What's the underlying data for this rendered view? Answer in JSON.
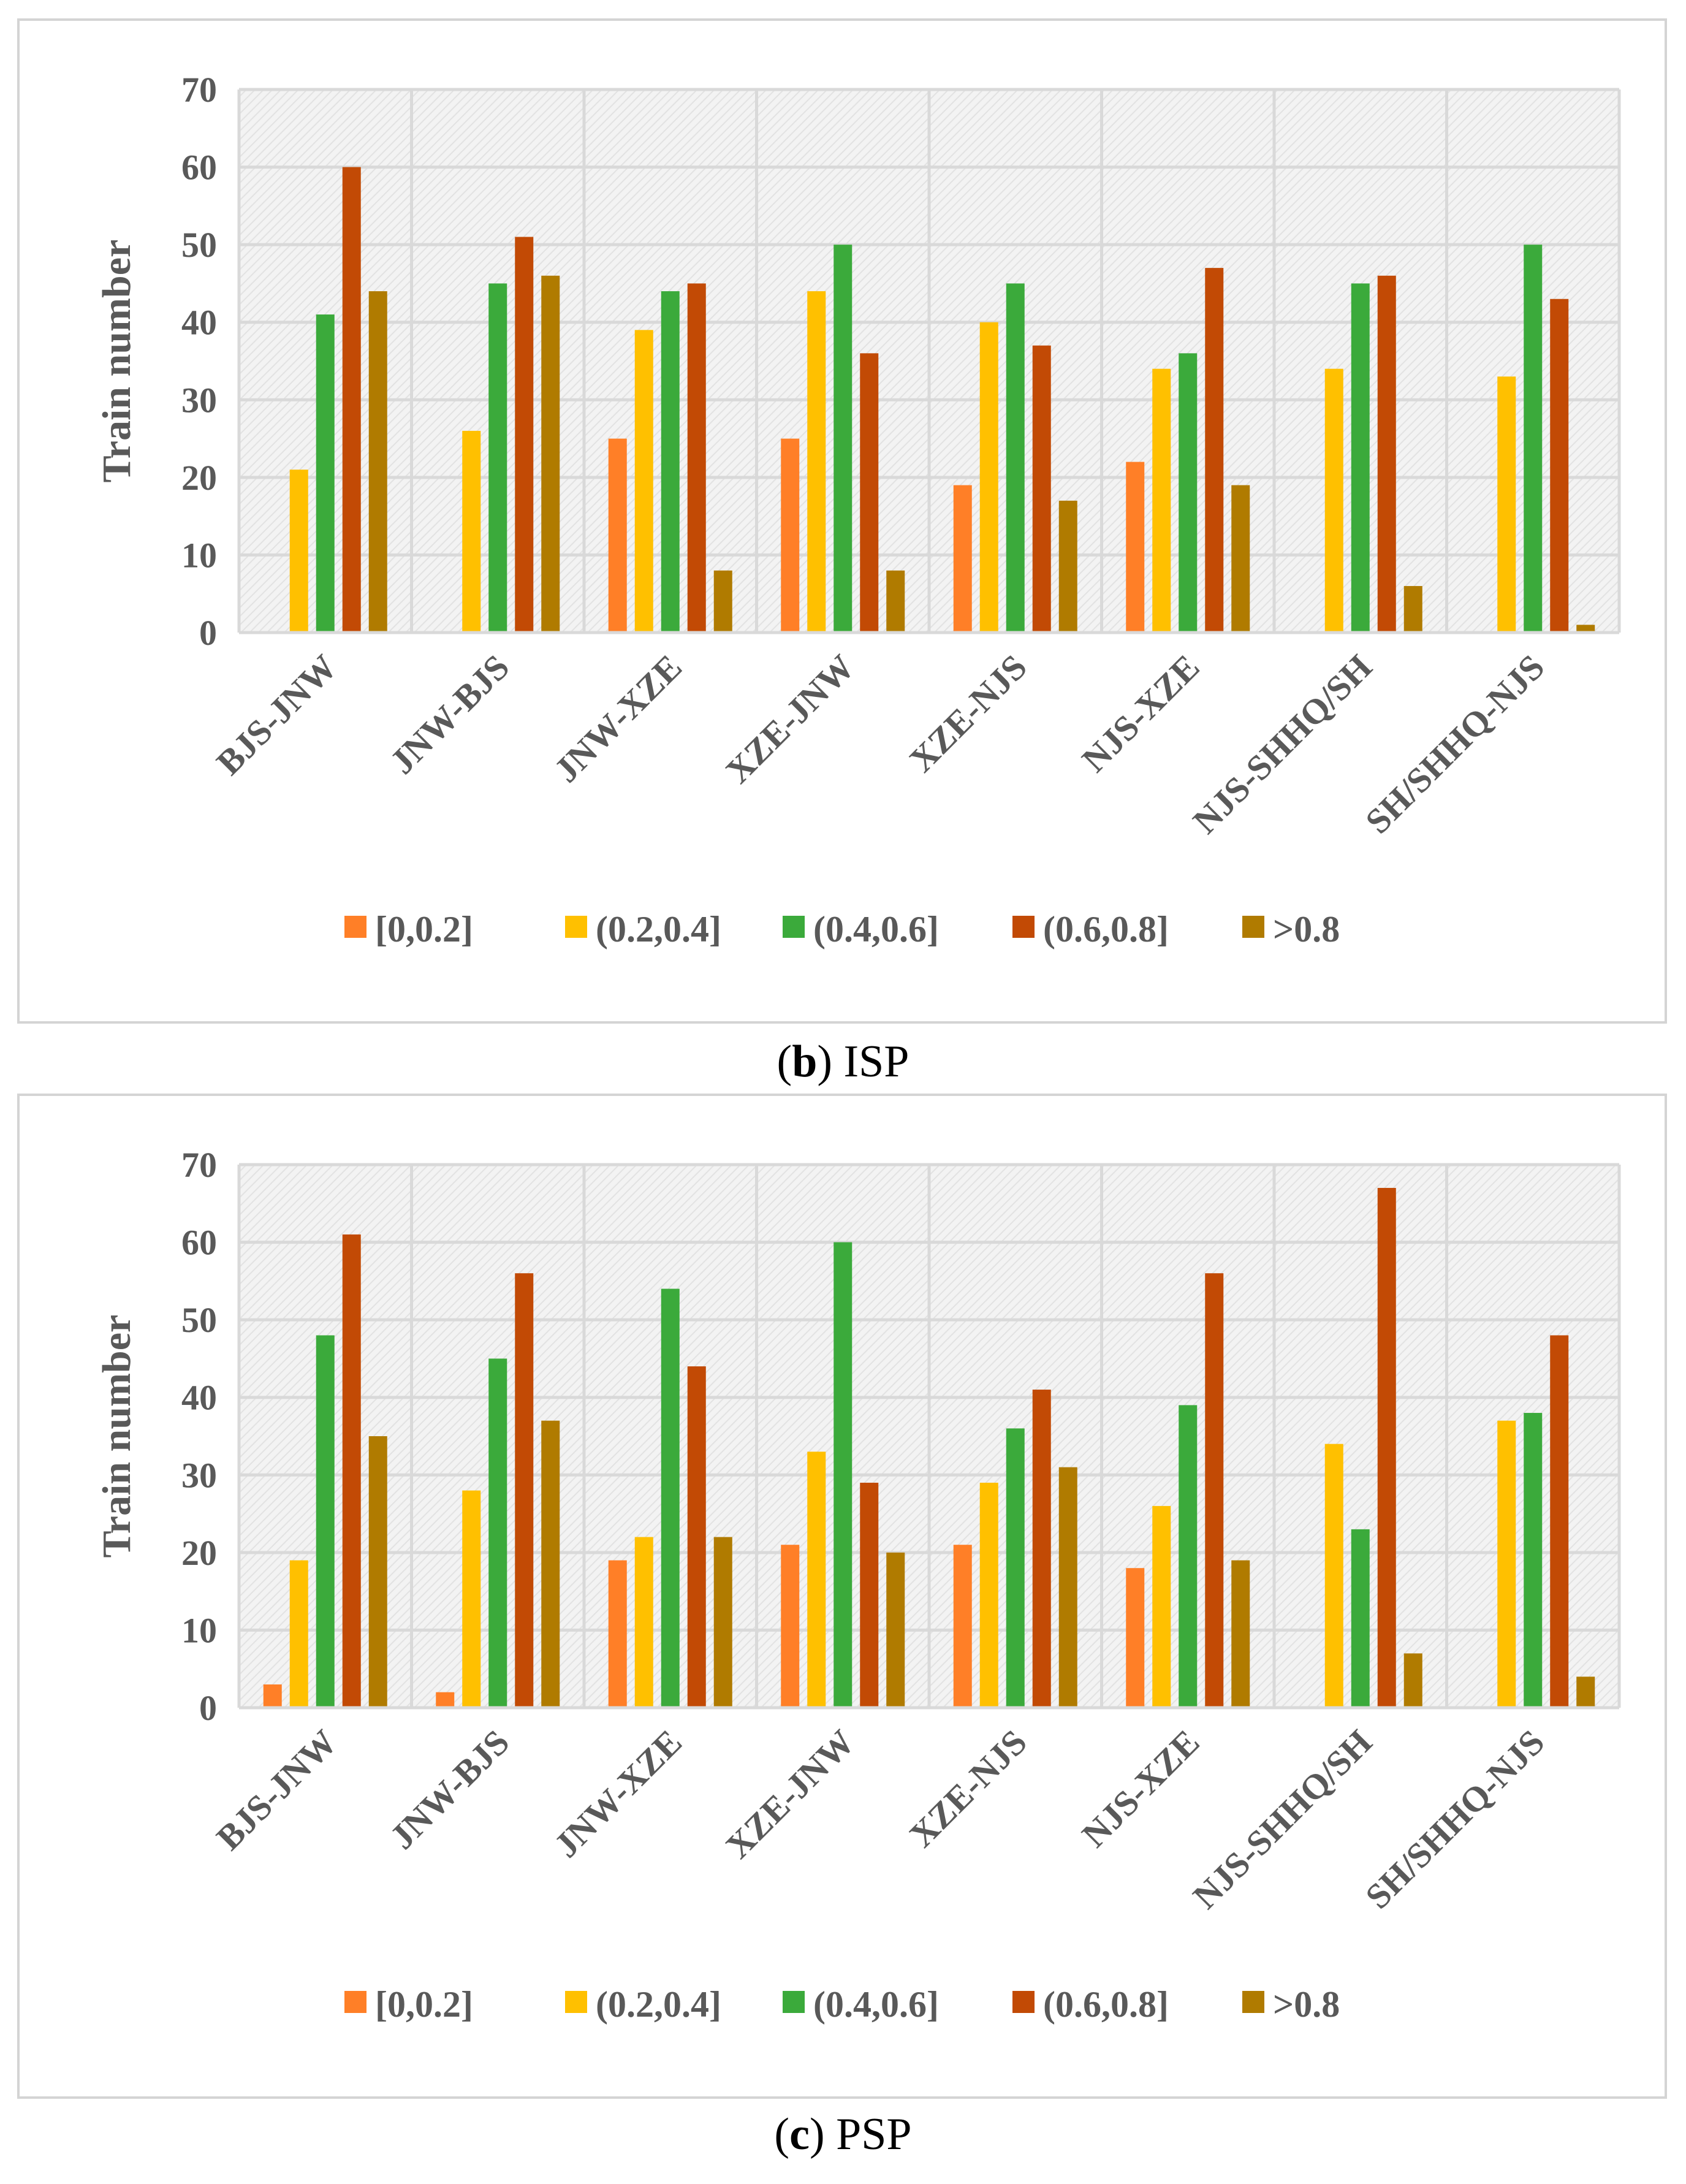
{
  "colors": {
    "s0": "#FF7F27",
    "s1": "#FFC000",
    "s2": "#3BAA3B",
    "s3": "#C24A05",
    "s4": "#B07B00",
    "grid": "#d9d9d9",
    "plot_bg": "#f3f3f3",
    "axis_text": "#595959"
  },
  "chart_data": [
    {
      "type": "bar",
      "panel_id": "b",
      "caption_letter": "b",
      "caption_text": "ISP",
      "ylabel": "Train number",
      "ylim": [
        0,
        70
      ],
      "yticks": [
        "0",
        "10",
        "20",
        "30",
        "40",
        "50",
        "60",
        "70"
      ],
      "grid": true,
      "legend_position": "bottom",
      "categories": [
        "BJS-JNW",
        "JNW-BJS",
        "JNW-XZE",
        "XZE-JNW",
        "XZE-NJS",
        "NJS-XZE",
        "NJS-SHHQ/SH",
        "SH/SHHQ-NJS"
      ],
      "series": [
        {
          "name": "[0,0.2]",
          "values": [
            0,
            0,
            25,
            25,
            19,
            22,
            0,
            0
          ]
        },
        {
          "name": "(0.2,0.4]",
          "values": [
            21,
            26,
            39,
            44,
            40,
            34,
            34,
            33
          ]
        },
        {
          "name": "(0.4,0.6]",
          "values": [
            41,
            45,
            44,
            50,
            45,
            36,
            45,
            50
          ]
        },
        {
          "name": "(0.6,0.8]",
          "values": [
            60,
            51,
            45,
            36,
            37,
            47,
            46,
            43
          ]
        },
        {
          "name": ">0.8",
          "values": [
            44,
            46,
            8,
            8,
            17,
            19,
            6,
            1
          ]
        }
      ]
    },
    {
      "type": "bar",
      "panel_id": "c",
      "caption_letter": "c",
      "caption_text": "PSP",
      "ylabel": "Train number",
      "ylim": [
        0,
        70
      ],
      "yticks": [
        "0",
        "10",
        "20",
        "30",
        "40",
        "50",
        "60",
        "70"
      ],
      "grid": true,
      "legend_position": "bottom",
      "categories": [
        "BJS-JNW",
        "JNW-BJS",
        "JNW-XZE",
        "XZE-JNW",
        "XZE-NJS",
        "NJS-XZE",
        "NJS-SHHQ/SH",
        "SH/SHHQ-NJS"
      ],
      "series": [
        {
          "name": "[0,0.2]",
          "values": [
            3,
            2,
            19,
            21,
            21,
            18,
            0,
            0
          ]
        },
        {
          "name": "(0.2,0.4]",
          "values": [
            19,
            28,
            22,
            33,
            29,
            26,
            34,
            37
          ]
        },
        {
          "name": "(0.4,0.6]",
          "values": [
            48,
            45,
            54,
            60,
            36,
            39,
            23,
            38
          ]
        },
        {
          "name": "(0.6,0.8]",
          "values": [
            61,
            56,
            44,
            29,
            41,
            56,
            67,
            48
          ]
        },
        {
          "name": ">0.8",
          "values": [
            35,
            37,
            22,
            20,
            31,
            19,
            7,
            4
          ]
        }
      ]
    }
  ]
}
